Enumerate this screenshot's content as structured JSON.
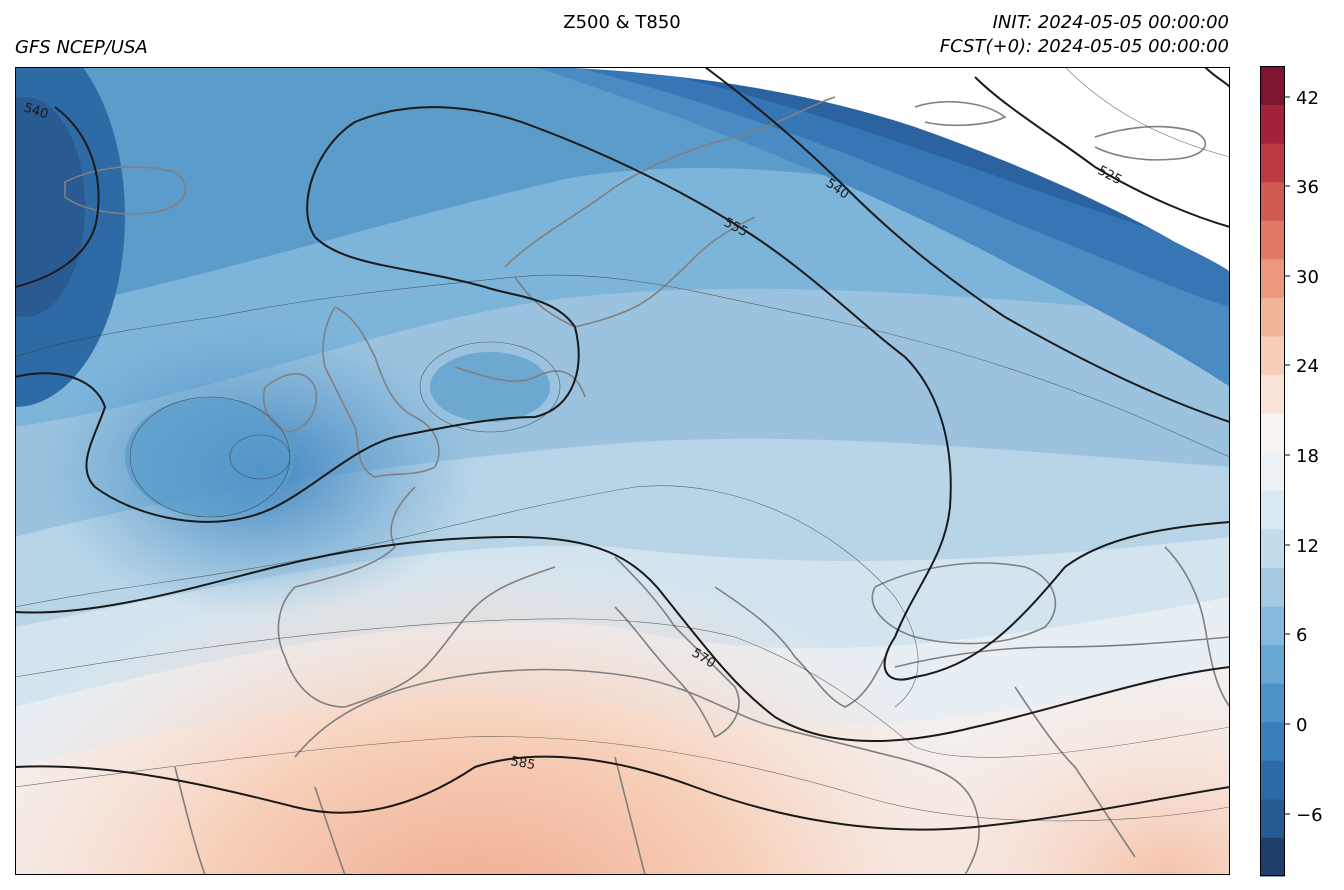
{
  "header": {
    "title": "Z500 & T850",
    "source": "GFS NCEP/USA",
    "init": "INIT: 2024-05-05 00:00:00",
    "forecast": "FCST(+0): 2024-05-05 00:00:00"
  },
  "map": {
    "region": "Europe / North Atlantic",
    "coastline_color": "#808080",
    "contour_color": "#1a1a1a",
    "contour_labels": [
      "540",
      "525",
      "540",
      "555",
      "570",
      "585"
    ]
  },
  "colorbar": {
    "min": -10,
    "max": 45,
    "tick_labels": [
      "42",
      "36",
      "30",
      "24",
      "18",
      "12",
      "6",
      "0",
      "−6"
    ],
    "colors_low_to_high": [
      "#1f3f6b",
      "#255a92",
      "#2c6aa8",
      "#3a7fbd",
      "#4b93c8",
      "#66a8d3",
      "#85bade",
      "#a5cbe4",
      "#c3dcec",
      "#d9e8f1",
      "#ebf1f5",
      "#f7f3f1",
      "#f9e3d8",
      "#f7cfb8",
      "#f3b599",
      "#ec987d",
      "#e07a65",
      "#d05a52",
      "#bd3a43",
      "#a3213b",
      "#7d1530"
    ]
  }
}
